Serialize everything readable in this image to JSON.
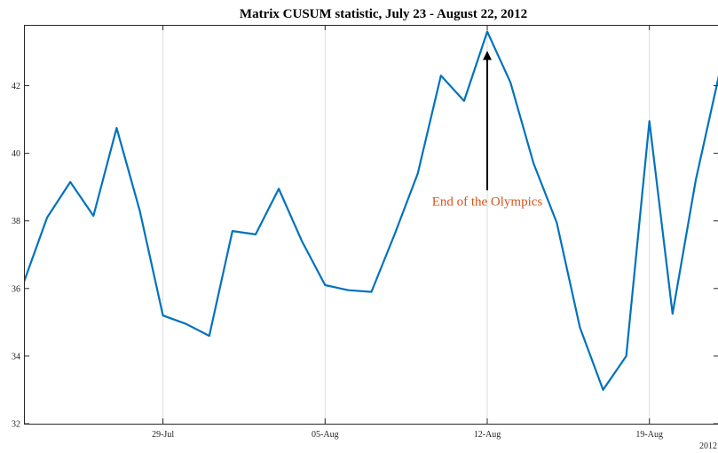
{
  "chart_data": {
    "type": "line",
    "title": "Matrix CUSUM statistic, July 23 - August 22, 2012",
    "xlabel": "",
    "ylabel": "",
    "xlim": [
      "2012-07-23",
      "2012-08-22"
    ],
    "ylim": [
      32,
      43.8
    ],
    "grid": "x",
    "x_ticks": [
      {
        "date": "2012-07-29",
        "label": "29-Jul"
      },
      {
        "date": "2012-08-05",
        "label": "05-Aug"
      },
      {
        "date": "2012-08-12",
        "label": "12-Aug"
      },
      {
        "date": "2012-08-19",
        "label": "19-Aug"
      }
    ],
    "x_secondary_label": "2012",
    "y_ticks": [
      32,
      34,
      36,
      38,
      40,
      42
    ],
    "series": [
      {
        "color": "#0072bd",
        "x": [
          "2012-07-23",
          "2012-07-24",
          "2012-07-25",
          "2012-07-26",
          "2012-07-27",
          "2012-07-28",
          "2012-07-29",
          "2012-07-30",
          "2012-07-31",
          "2012-08-01",
          "2012-08-02",
          "2012-08-03",
          "2012-08-04",
          "2012-08-05",
          "2012-08-06",
          "2012-08-07",
          "2012-08-08",
          "2012-08-09",
          "2012-08-10",
          "2012-08-11",
          "2012-08-12",
          "2012-08-13",
          "2012-08-14",
          "2012-08-15",
          "2012-08-16",
          "2012-08-17",
          "2012-08-18",
          "2012-08-19",
          "2012-08-20",
          "2012-08-21",
          "2012-08-22"
        ],
        "values": [
          36.2,
          38.1,
          39.15,
          38.15,
          40.75,
          38.3,
          35.2,
          34.95,
          34.6,
          37.7,
          37.6,
          38.95,
          37.4,
          36.1,
          35.95,
          35.9,
          37.6,
          39.4,
          42.3,
          41.55,
          43.6,
          42.1,
          39.7,
          37.95,
          34.85,
          33.0,
          34.0,
          40.95,
          35.25,
          39.2,
          42.3
        ]
      }
    ],
    "annotations": [
      {
        "text": "End of the Olympics",
        "x": "2012-08-12",
        "y": 43.0,
        "text_color": "#d95319",
        "arrow_color": "#000000",
        "text_y": 38.8
      }
    ]
  }
}
